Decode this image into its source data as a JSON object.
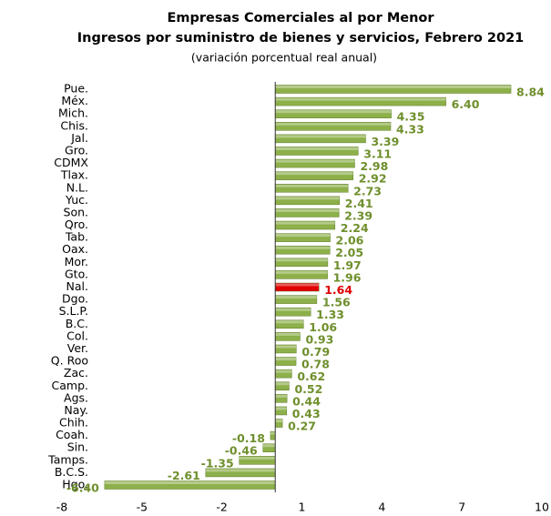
{
  "chart_data": {
    "type": "barh",
    "title": "Empresas Comerciales al por Menor",
    "subtitle": "Ingresos por suministro de bienes y servicios, Febrero 2021",
    "note": "(variación porcentual real anual)",
    "categories": [
      "Pue.",
      "Méx.",
      "Mich.",
      "Chis.",
      "Jal.",
      "Gro.",
      "CDMX",
      "Tlax.",
      "N.L.",
      "Yuc.",
      "Son.",
      "Qro.",
      "Tab.",
      "Oax.",
      "Mor.",
      "Gto.",
      "Nal.",
      "Dgo.",
      "S.L.P.",
      "B.C.",
      "Col.",
      "Ver.",
      "Q. Roo",
      "Zac.",
      "Camp.",
      "Ags.",
      "Nay.",
      "Chih.",
      "Coah.",
      "Sin.",
      "Tamps.",
      "B.C.S.",
      "Hgo."
    ],
    "values": [
      8.84,
      6.4,
      4.35,
      4.33,
      3.39,
      3.11,
      2.98,
      2.92,
      2.73,
      2.41,
      2.39,
      2.24,
      2.06,
      2.05,
      1.97,
      1.96,
      1.64,
      1.56,
      1.33,
      1.06,
      0.93,
      0.79,
      0.78,
      0.62,
      0.52,
      0.44,
      0.43,
      0.27,
      -0.18,
      -0.46,
      -1.35,
      -2.61,
      -6.4
    ],
    "value_labels": [
      "8.84",
      "6.40",
      "4.35",
      "4.33",
      "3.39",
      "3.11",
      "2.98",
      "2.92",
      "2.73",
      "2.41",
      "2.39",
      "2.24",
      "2.06",
      "2.05",
      "1.97",
      "1.96",
      "1.64",
      "1.56",
      "1.33",
      "1.06",
      "0.93",
      "0.79",
      "0.78",
      "0.62",
      "0.52",
      "0.44",
      "0.43",
      "0.27",
      "-0.18",
      "-0.46",
      "-1.35",
      "-2.61",
      "-6.40"
    ],
    "colors": [
      "#8db04a",
      "#8db04a",
      "#8db04a",
      "#8db04a",
      "#8db04a",
      "#8db04a",
      "#8db04a",
      "#8db04a",
      "#8db04a",
      "#8db04a",
      "#8db04a",
      "#8db04a",
      "#8db04a",
      "#8db04a",
      "#8db04a",
      "#8db04a",
      "#e00000",
      "#8db04a",
      "#8db04a",
      "#8db04a",
      "#8db04a",
      "#8db04a",
      "#8db04a",
      "#8db04a",
      "#8db04a",
      "#8db04a",
      "#8db04a",
      "#8db04a",
      "#8db04a",
      "#8db04a",
      "#8db04a",
      "#8db04a",
      "#8db04a"
    ],
    "value_label_colors": [
      "#6f8f2c",
      "#6f8f2c",
      "#6f8f2c",
      "#6f8f2c",
      "#6f8f2c",
      "#6f8f2c",
      "#6f8f2c",
      "#6f8f2c",
      "#6f8f2c",
      "#6f8f2c",
      "#6f8f2c",
      "#6f8f2c",
      "#6f8f2c",
      "#6f8f2c",
      "#6f8f2c",
      "#6f8f2c",
      "#e00000",
      "#6f8f2c",
      "#6f8f2c",
      "#6f8f2c",
      "#6f8f2c",
      "#6f8f2c",
      "#6f8f2c",
      "#6f8f2c",
      "#6f8f2c",
      "#6f8f2c",
      "#6f8f2c",
      "#6f8f2c",
      "#6f8f2c",
      "#6f8f2c",
      "#6f8f2c",
      "#6f8f2c",
      "#6f8f2c"
    ],
    "xlim": [
      -8,
      10
    ],
    "xticks": [
      -8,
      -5,
      -2,
      1,
      4,
      7,
      10
    ]
  }
}
